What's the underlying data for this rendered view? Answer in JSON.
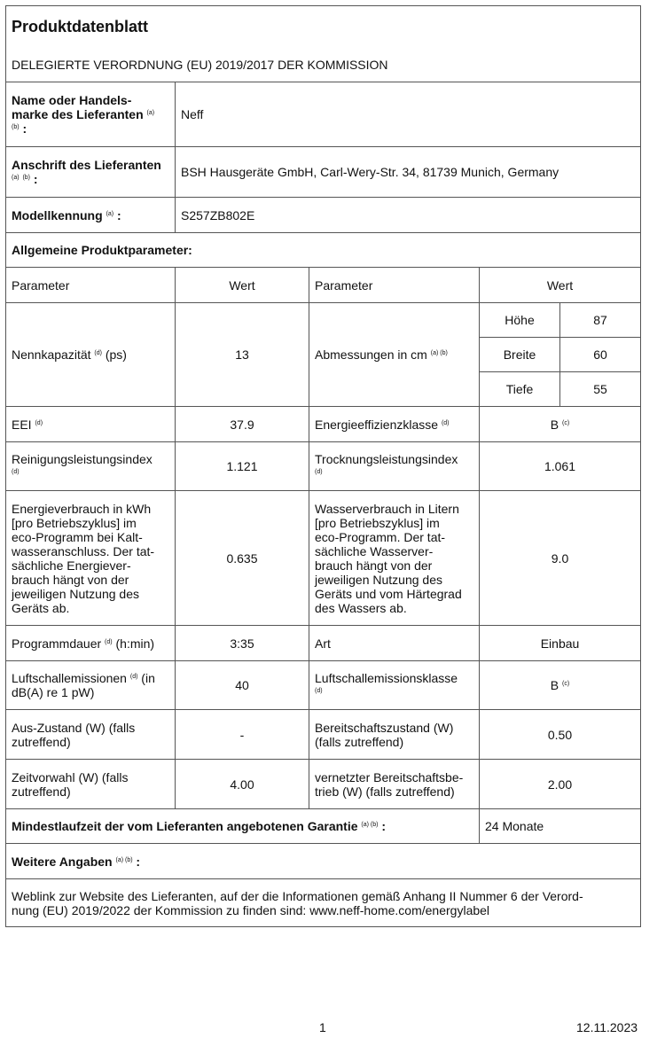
{
  "header": {
    "title": "Produktdatenblatt",
    "subtitle": "DELEGIERTE VERORDNUNG (EU) 2019/2017 DER KOMMISSION"
  },
  "supplier": {
    "name_label": "Name oder Handels-\nmarke des Lieferanten",
    "name_sup1": "(a)",
    "name_sup2": "(b)",
    "colon": ":",
    "name_value": "Neff",
    "address_label": "Anschrift des Lieferanten",
    "address_sup1": "(a)",
    "address_sup2": "(b)",
    "address_value": "BSH Hausgeräte GmbH, Carl-Wery-Str. 34, 81739 Munich, Germany",
    "model_label": "Modellkennung",
    "model_sup": "(a)",
    "model_value": "S257ZB802E"
  },
  "general": {
    "label": "Allgemeine Produktparameter:",
    "col_param": "Parameter",
    "col_value": "Wert",
    "rows": [
      {
        "l": "Nennkapazität",
        "lsup": "(d)",
        "lsuffix": " (ps)",
        "v": "13",
        "r": "Abmessungen in cm",
        "rsup": "(a) (b)"
      },
      {
        "l": "EEI",
        "lsup": "(d)",
        "v": "37.9",
        "r": "Energieeffizienzklasse",
        "rsup": "(d)",
        "rv": "B",
        "rvsup": "(c)"
      },
      {
        "l": "Reinigungsleistungsindex\n",
        "lsup": "(d)",
        "v": "1.121",
        "r": "Trocknungsleistungsindex\n",
        "rsup": "(d)",
        "rv": "1.061"
      },
      {
        "l": "Energieverbrauch in kWh\n[pro Betriebszyklus] im\neco-Programm bei Kalt-\nwasseranschluss. Der tat-\nsächliche Energiever-\nbrauch hängt von der\njeweiligen Nutzung des\nGeräts ab.",
        "v": "0.635",
        "r": "Wasserverbrauch in Litern\n[pro Betriebszyklus] im\neco-Programm. Der tat-\nsächliche Wasserver-\nbrauch hängt von der\njeweiligen Nutzung des\nGeräts und vom Härtegrad\ndes Wassers ab.",
        "rv": "9.0"
      },
      {
        "l": "Programmdauer",
        "lsup": "(d)",
        "lsuffix": " (h:min)",
        "v": "3:35",
        "r": "Art",
        "rv": "Einbau"
      },
      {
        "l": "Luftschallemissionen",
        "lsup": "(d)",
        "lsuffix": " (in\ndB(A) re 1 pW)",
        "v": "40",
        "r": "Luftschallemissionsklasse\n",
        "rsup": "(d)",
        "rv": "B",
        "rvsup": "(c)"
      },
      {
        "l": "Aus-Zustand (W) (falls\nzutreffend)",
        "v": "-",
        "r": "Bereitschaftszustand (W)\n(falls zutreffend)",
        "rv": "0.50"
      },
      {
        "l": "Zeitvorwahl (W) (falls\nzutreffend)",
        "v": "4.00",
        "r": "vernetzter Bereitschaftsbe-\ntrieb (W) (falls zutreffend)",
        "rv": "2.00"
      }
    ],
    "dimensions": [
      {
        "label": "Höhe",
        "value": "87"
      },
      {
        "label": "Breite",
        "value": "60"
      },
      {
        "label": "Tiefe",
        "value": "55"
      }
    ]
  },
  "warranty": {
    "label": "Mindestlaufzeit der vom Lieferanten angebotenen Garantie",
    "sup": "(a) (b)",
    "colon": " :",
    "value": "24 Monate"
  },
  "further": {
    "label": "Weitere Angaben",
    "sup": "(a) (b)",
    "colon": " :",
    "text": "Weblink zur Website des Lieferanten, auf der die Informationen gemäß Anhang II Nummer 6 der Verord-\nnung (EU) 2019/2022 der Kommission zu finden sind: www.neff-home.com/energylabel"
  },
  "footer": {
    "page": "1",
    "date": "12.11.2023"
  }
}
